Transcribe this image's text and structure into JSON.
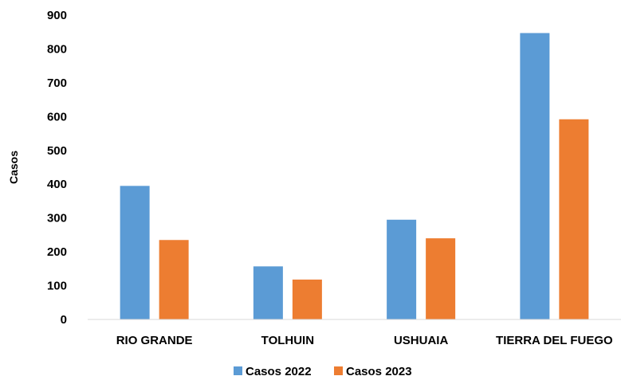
{
  "chart_data": {
    "type": "bar",
    "categories": [
      "RIO GRANDE",
      "TOLHUIN",
      "USHUAIA",
      "TIERRA DEL FUEGO"
    ],
    "series": [
      {
        "name": "Casos 2022",
        "values": [
          395,
          157,
          295,
          847
        ],
        "color": "#5B9BD5"
      },
      {
        "name": "Casos 2023",
        "values": [
          235,
          118,
          240,
          592
        ],
        "color": "#ED7D31"
      }
    ],
    "ylabel": "Casos",
    "xlabel": "",
    "ylim": [
      0,
      900
    ],
    "yticks": [
      0,
      100,
      200,
      300,
      400,
      500,
      600,
      700,
      800,
      900
    ],
    "grid": false,
    "legend_position": "bottom"
  }
}
